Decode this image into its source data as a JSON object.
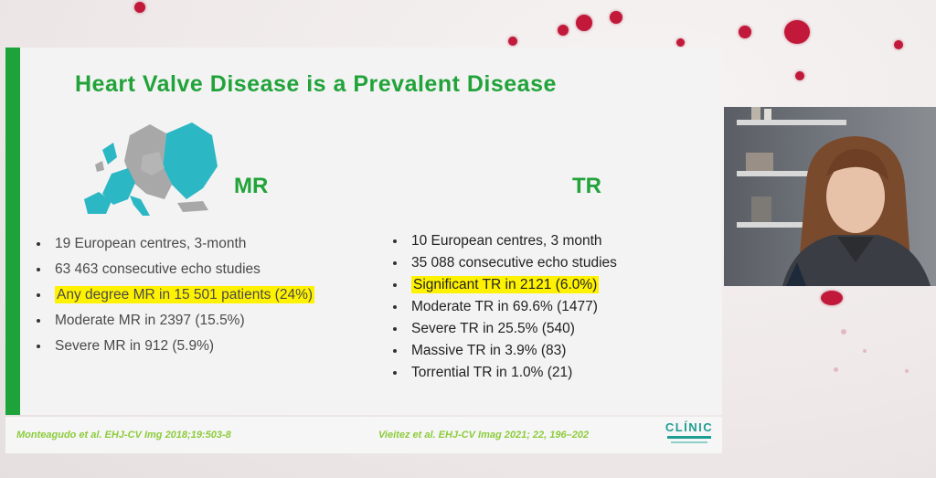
{
  "slide": {
    "title": "Heart Valve Disease is a Prevalent Disease",
    "mr": {
      "heading": "MR",
      "bullets": [
        "19 European centres, 3-month",
        "63 463 consecutive echo studies",
        "Any degree MR in 15 501 patients (24%)",
        "Moderate MR in  2397 (15.5%)",
        "Severe MR in 912 (5.9%)"
      ],
      "highlighted_index": 2
    },
    "tr": {
      "heading": "TR",
      "bullets": [
        "10 European centres, 3 month",
        "35 088 consecutive echo studies",
        "Significant TR in 2121 (6.0%)",
        "Moderate TR in 69.6% (1477)",
        "Severe TR in 25.5% (540)",
        "Massive TR in 3.9% (83)",
        "Torrential TR in 1.0% (21)"
      ],
      "highlighted_index": 2
    },
    "references": {
      "left": "Monteagudo et al. EHJ-CV Img 2018;19:503-8",
      "right": "Vieitez et al. EHJ-CV Imag 2021; 22, 196–202"
    },
    "logo": {
      "word": "CLÍNIC"
    }
  },
  "colors": {
    "accent_green": "#21a33a",
    "highlight": "#fff200",
    "map_teal": "#2cb7c4",
    "map_grey": "#a8a8a8",
    "logo_teal": "#1f9e92",
    "decor_red": "#c2183a"
  },
  "video": {
    "icon": "presenter-video-icon"
  }
}
